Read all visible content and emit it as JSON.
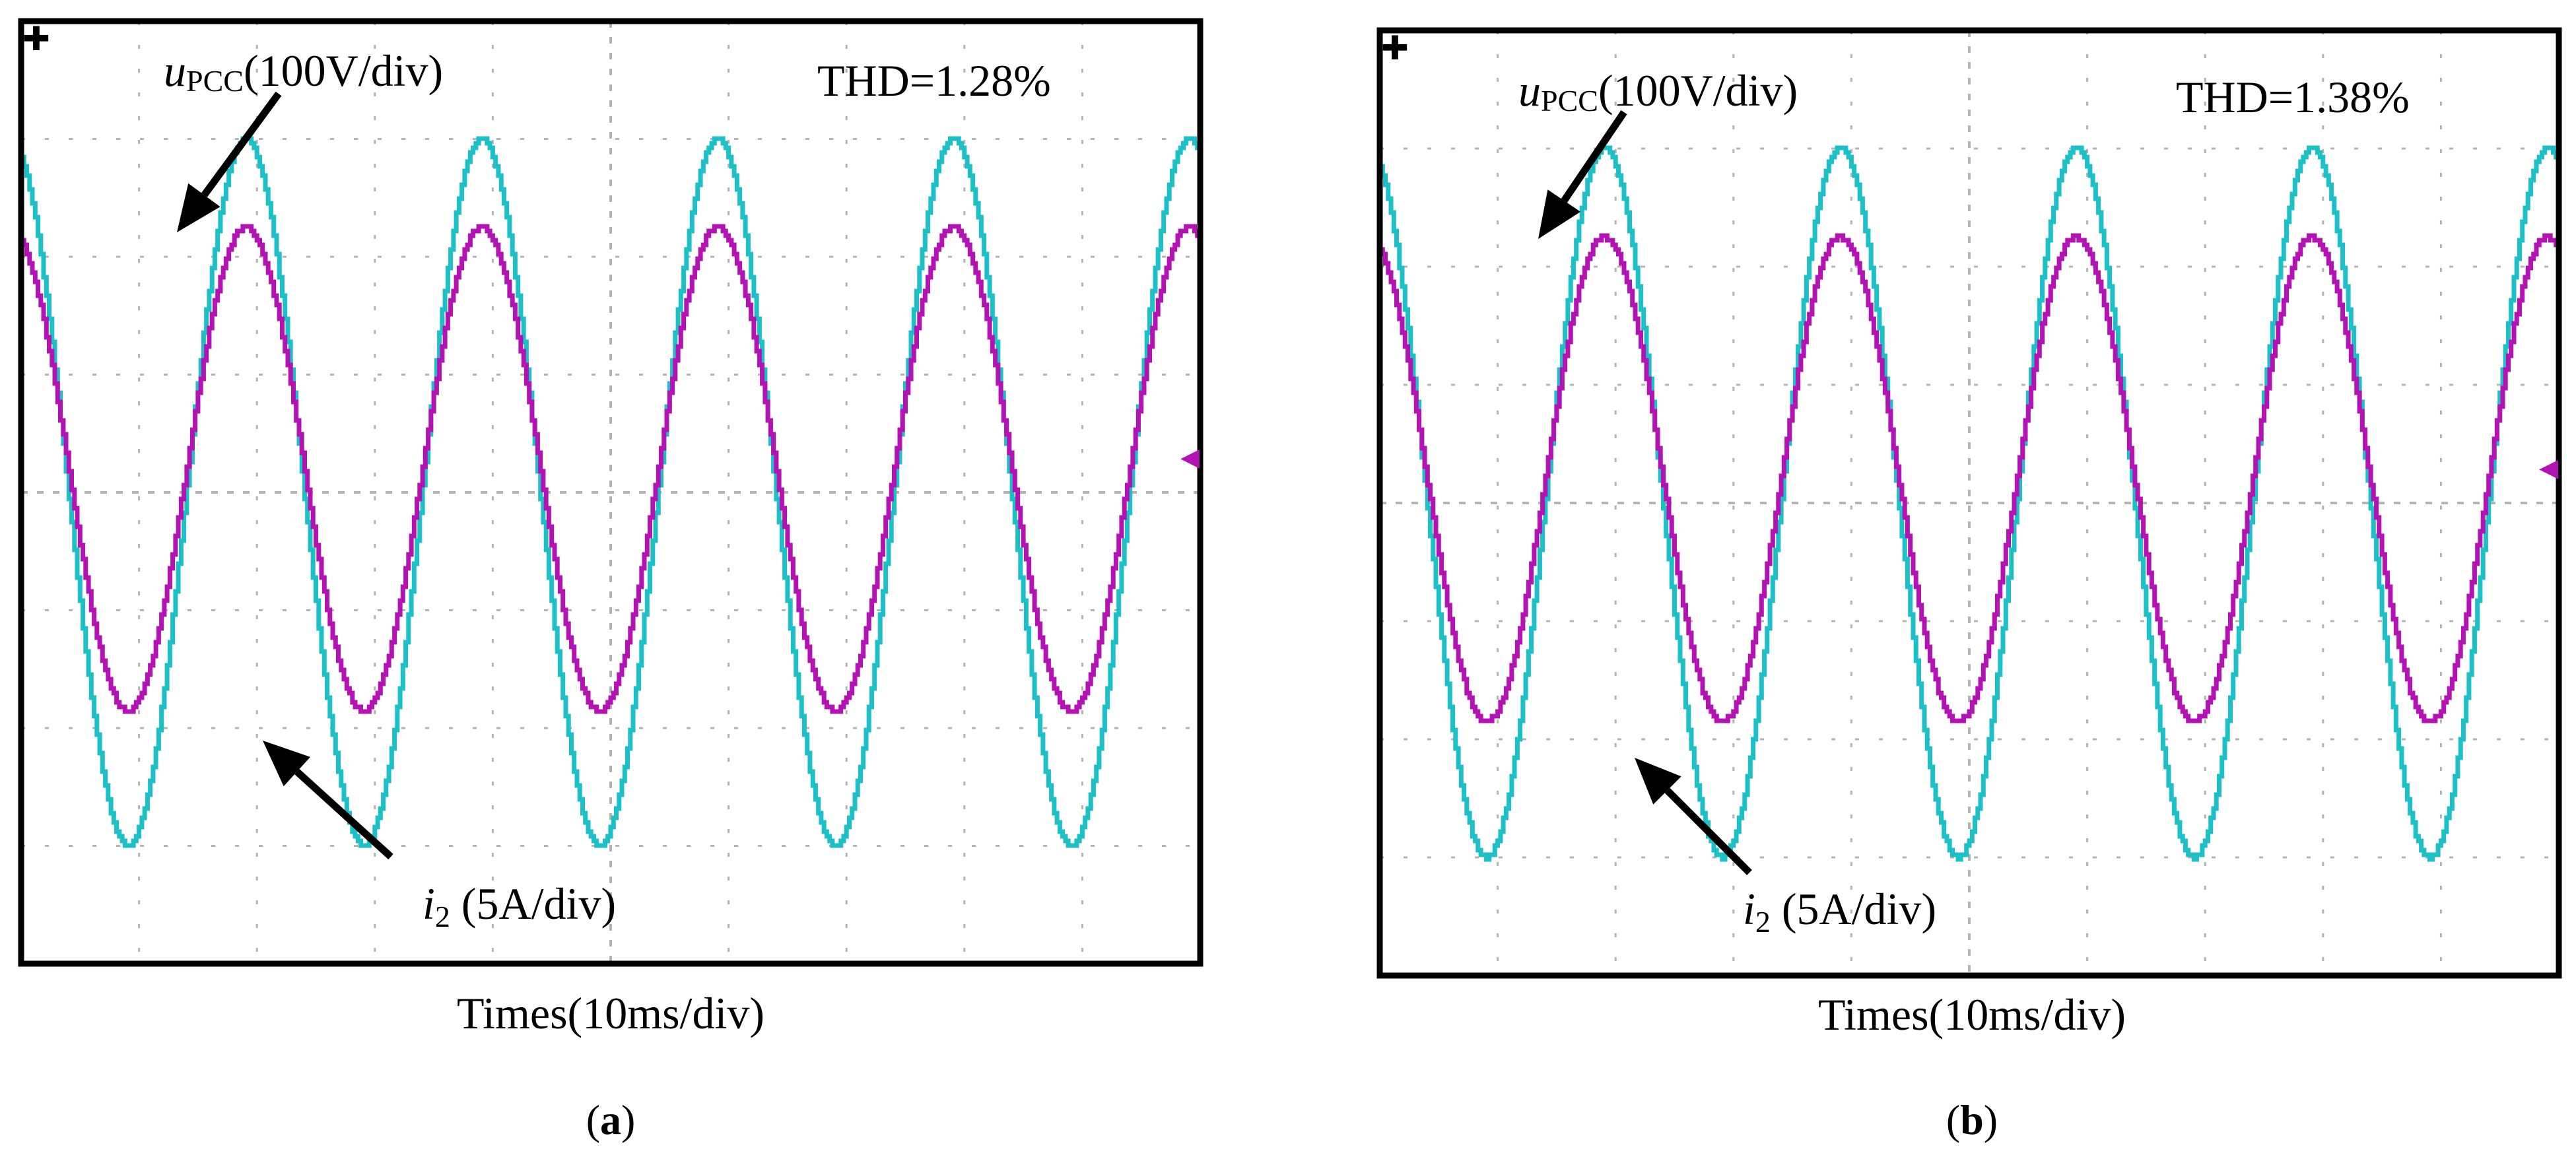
{
  "colors": {
    "voltage": "#1cc0c6",
    "current": "#b413b4",
    "grid": "#b4b4b4",
    "frame": "#000000",
    "background": "#ffffff"
  },
  "chart_data": [
    {
      "type": "line",
      "panel": "a",
      "caption_letter": "a",
      "thd_text": "THD=1.28%",
      "xlabel": "Times(10ms/div)",
      "x_divisions": 10,
      "y_divisions": 8,
      "x_unit": "ms",
      "x_per_div": 10,
      "xlim": [
        0,
        100
      ],
      "ylim": [
        -4,
        4
      ],
      "periods": 5,
      "series": [
        {
          "name": "uPCC",
          "label_main": "u",
          "label_sub": "PCC",
          "label_scale": "(100V/div)",
          "scale_per_div": "100V",
          "amplitude_div": 3.0,
          "offset_div": 0.0,
          "phase_deg": 108,
          "color_key": "voltage"
        },
        {
          "name": "i2",
          "label_main": "i",
          "label_sub": "2",
          "label_scale": " (5A/div)",
          "scale_per_div": "5A",
          "amplitude_div": 2.05,
          "offset_div": 0.2,
          "phase_deg": 108,
          "color_key": "current"
        }
      ],
      "marker": "◂",
      "trigger_marker": "✚"
    },
    {
      "type": "line",
      "panel": "b",
      "caption_letter": "b",
      "thd_text": "THD=1.38%",
      "xlabel": "Times(10ms/div)",
      "x_divisions": 10,
      "y_divisions": 8,
      "x_unit": "ms",
      "x_per_div": 10,
      "xlim": [
        0,
        100
      ],
      "ylim": [
        -4,
        4
      ],
      "periods": 5,
      "series": [
        {
          "name": "uPCC",
          "label_main": "u",
          "label_sub": "PCC",
          "label_scale": "(100V/div)",
          "scale_per_div": "100V",
          "amplitude_div": 3.0,
          "offset_div": 0.0,
          "phase_deg": 108,
          "color_key": "voltage"
        },
        {
          "name": "i2",
          "label_main": "i",
          "label_sub": "2",
          "label_scale": " (5A/div)",
          "scale_per_div": "5A",
          "amplitude_div": 2.05,
          "offset_div": 0.2,
          "phase_deg": 108,
          "color_key": "current"
        }
      ],
      "marker": "◂",
      "trigger_marker": "✚"
    }
  ]
}
